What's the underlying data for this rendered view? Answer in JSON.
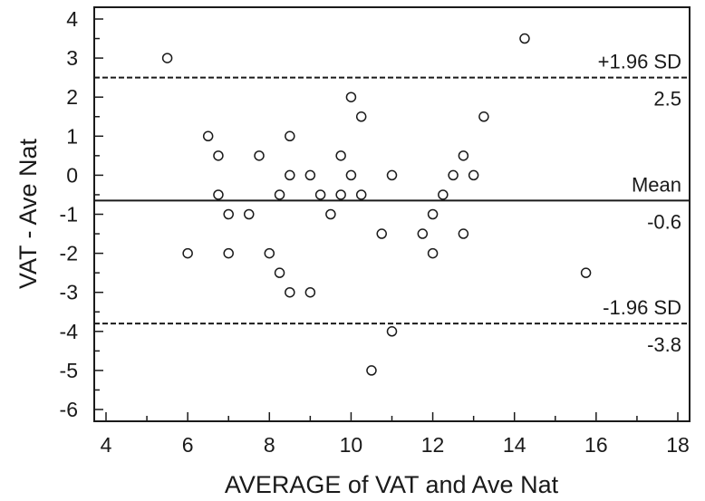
{
  "chart_data": {
    "type": "scatter",
    "title": "",
    "xlabel": "AVERAGE of VAT and Ave Nat",
    "ylabel": "VAT - Ave Nat",
    "xlim": [
      4,
      18
    ],
    "ylim": [
      -6.3,
      4.3
    ],
    "xticks": [
      4,
      6,
      8,
      10,
      12,
      14,
      16,
      18
    ],
    "yticks": [
      -6,
      -5,
      -4,
      -3,
      -2,
      -1,
      0,
      1,
      2,
      3,
      4
    ],
    "grid": false,
    "marker": "open-circle",
    "points": [
      {
        "x": 5.5,
        "y": 3
      },
      {
        "x": 6,
        "y": -2
      },
      {
        "x": 6.5,
        "y": 1
      },
      {
        "x": 6.75,
        "y": 0.5
      },
      {
        "x": 6.75,
        "y": -0.5
      },
      {
        "x": 7,
        "y": -1
      },
      {
        "x": 7,
        "y": -2
      },
      {
        "x": 7.5,
        "y": -1
      },
      {
        "x": 7.75,
        "y": 0.5
      },
      {
        "x": 8,
        "y": -2
      },
      {
        "x": 8.25,
        "y": -0.5
      },
      {
        "x": 8.25,
        "y": -2.5
      },
      {
        "x": 8.5,
        "y": 1
      },
      {
        "x": 8.5,
        "y": 0
      },
      {
        "x": 8.5,
        "y": -3
      },
      {
        "x": 9,
        "y": 0
      },
      {
        "x": 9,
        "y": -3
      },
      {
        "x": 9.25,
        "y": -0.5
      },
      {
        "x": 9.5,
        "y": -1
      },
      {
        "x": 9.75,
        "y": 0.5
      },
      {
        "x": 9.75,
        "y": -0.5
      },
      {
        "x": 10,
        "y": 2
      },
      {
        "x": 10,
        "y": 0
      },
      {
        "x": 10.25,
        "y": 1.5
      },
      {
        "x": 10.25,
        "y": -0.5
      },
      {
        "x": 10.5,
        "y": -5
      },
      {
        "x": 10.75,
        "y": -1.5
      },
      {
        "x": 11,
        "y": 0
      },
      {
        "x": 11,
        "y": -4
      },
      {
        "x": 11.75,
        "y": -1.5
      },
      {
        "x": 12,
        "y": -1
      },
      {
        "x": 12,
        "y": -2
      },
      {
        "x": 12.25,
        "y": -0.5
      },
      {
        "x": 12.5,
        "y": 0
      },
      {
        "x": 12.75,
        "y": 0.5
      },
      {
        "x": 12.75,
        "y": -1.5
      },
      {
        "x": 13,
        "y": 0
      },
      {
        "x": 13.25,
        "y": 1.5
      },
      {
        "x": 14.25,
        "y": 3.5
      },
      {
        "x": 15.75,
        "y": -2.5
      }
    ],
    "reference_lines": [
      {
        "name": "+1.96 SD",
        "value": 2.5,
        "value_label": "2.5",
        "style": "dashed"
      },
      {
        "name": "Mean",
        "value": -0.65,
        "value_label": "-0.6",
        "style": "solid"
      },
      {
        "name": "-1.96 SD",
        "value": -3.8,
        "value_label": "-3.8",
        "style": "dashed"
      }
    ]
  }
}
